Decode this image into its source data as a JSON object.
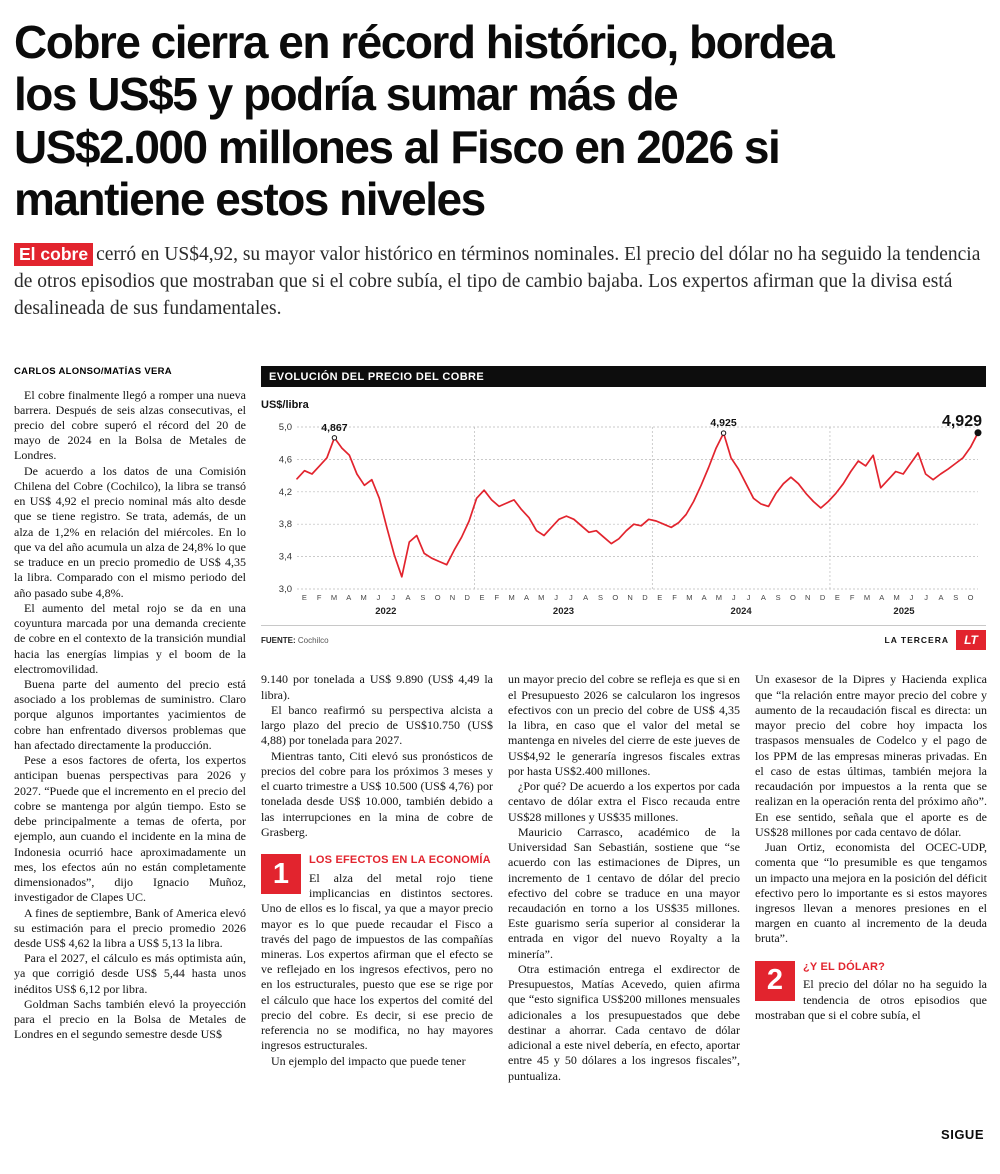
{
  "accent_color": "#e2242e",
  "header": {
    "headline_lines": [
      "Cobre cierra en récord histórico, bordea",
      "los US$5 y podría sumar más de",
      "US$2.000 millones al Fisco en 2026 si",
      "mantiene estos niveles"
    ]
  },
  "lead": {
    "tag": "El cobre",
    "text": "cerró en US$4,92, su mayor valor histórico en términos nominales. El precio del dólar no ha seguido la tendencia de otros episodios que mostraban que si el cobre subía, el tipo de cambio bajaba. Los expertos afirman que la divisa está desalineada de sus fundamentales."
  },
  "byline": "CARLOS ALONSO/MATÍAS VERA",
  "columns": {
    "col1": [
      "El cobre finalmente llegó a romper una nueva barrera. Después de seis alzas consecutivas, el precio del cobre superó el récord del 20 de mayo de 2024 en la Bolsa de Metales de Londres.",
      "De acuerdo a los datos de una Comisión Chilena del Cobre (Cochilco), la libra se transó en US$ 4,92 el precio nominal más alto desde que se tiene registro. Se trata, además, de un alza de 1,2% en relación del miércoles. En lo que va del año acumula un alza de 24,8% lo que se traduce en un precio promedio de US$ 4,35 la libra. Comparado con el mismo periodo del año pasado sube 4,8%.",
      "El aumento del metal rojo se da en una coyuntura marcada por una demanda creciente de cobre en el contexto de la transición mundial hacia las energías limpias y el boom de la electromovilidad.",
      "Buena parte del aumento del precio está asociado a los problemas de suministro. Claro porque algunos importantes yacimientos de cobre han enfrentado diversos problemas que han afectado directamente la producción.",
      "Pese a esos factores de oferta, los expertos anticipan buenas perspectivas para 2026 y 2027. “Puede que el incremento en el precio del cobre se mantenga por algún tiempo. Esto se debe principalmente a temas de oferta, por ejemplo, aun cuando el incidente en la mina de Indonesia ocurrió hace aproximadamente un mes, los efectos aún no están completamente dimensionados”, dijo Ignacio Muñoz, investigador de Clapes UC.",
      "A fines de septiembre, Bank of America elevó su estimación para el precio promedio 2026 desde US$ 4,62 la libra a US$ 5,13 la libra.",
      "Para el 2027, el cálculo es más optimista aún, ya que corrigió desde US$ 5,44 hasta unos inéditos US$ 6,12 por libra.",
      "Goldman Sachs también elevó la proyección para el precio en la Bolsa de Metales de Londres en el segundo semestre desde US$"
    ],
    "col2": [
      "9.140 por tonelada a US$ 9.890 (US$ 4,49 la libra).",
      "El banco reafirmó su perspectiva alcista a largo plazo del precio de US$10.750 (US$ 4,88) por tonelada para 2027.",
      "Mientras tanto, Citi elevó sus pronósticos de precios del cobre para los próximos 3 meses y el cuarto trimestre a US$ 10.500 (US$ 4,76) por tonelada desde US$ 10.000, también debido a las interrupciones en la mina de cobre de Grasberg."
    ],
    "col3": [
      "un mayor precio del cobre se refleja es que si en el Presupuesto 2026 se calcularon los ingresos efectivos con un precio del cobre de US$ 4,35 la libra, en caso que el valor del metal se mantenga en niveles del cierre de este jueves de US$4,92 le generaría ingresos fiscales extras por hasta US$2.400 millones.",
      "¿Por qué? De acuerdo a los expertos por cada centavo de dólar extra el Fisco recauda entre US$28 millones y US$35 millones.",
      "Mauricio Carrasco, académico de la Universidad San Sebastián, sostiene que “se acuerdo con las estimaciones de Dipres, un incremento de 1 centavo de dólar del precio efectivo del cobre se traduce en una mayor recaudación en torno a los US$35 millones. Este guarismo sería superior al considerar la entrada en vigor del nuevo Royalty a la minería”.",
      "Otra estimación entrega el exdirector de Presupuestos, Matías Acevedo, quien afirma que “esto significa US$200 millones mensuales adicionales a los presupuestados que debe destinar a ahorrar. Cada centavo de dólar adicional a este nivel debería, en efecto, aportar entre 45 y 50 dólares a los ingresos fiscales”, puntualiza."
    ],
    "col4": [
      "Un exasesor de la Dipres y Hacienda explica que “la relación entre mayor precio del cobre y aumento de la recaudación fiscal es directa: un mayor precio del cobre hoy impacta los traspasos mensuales de Codelco y el pago de los PPM de las empresas mineras privadas. En el caso de estas últimas, también mejora la recaudación por impuestos a la renta que se realizan en la operación renta del próximo año”. En ese sentido, señala que el aporte es de US$28 millones por cada centavo de dólar.",
      "Juan Ortiz, economista del OCEC-UDP, comenta que “lo presumible es que tengamos un impacto una mejora en la posición del déficit efectivo pero lo importante es si estos mayores ingresos llevan a menores presiones en el margen en cuanto al incremento de la deuda bruta”."
    ]
  },
  "sections": {
    "s1": {
      "number": "1",
      "title": "LOS EFECTOS EN LA ECONOMÍA",
      "paragraphs": [
        "El alza del metal rojo tiene implicancias en distintos sectores. Uno de ellos es lo fiscal, ya que a mayor precio mayor es lo que puede recaudar el Fisco a través del pago de impuestos de las compañías mineras. Los expertos afirman que el efecto se ve reflejado en los ingresos efectivos, pero no en los estructurales, puesto que ese se rige por el cálculo que hace los expertos del comité del precio del cobre. Es decir, si ese precio de referencia no se modifica, no hay mayores ingresos estructurales.",
        "Un ejemplo del impacto que puede tener"
      ]
    },
    "s2": {
      "number": "2",
      "title": "¿Y EL DÓLAR?",
      "paragraphs": [
        "El precio del dólar no ha seguido la tendencia de otros episodios que mostraban que si el cobre subía, el"
      ]
    }
  },
  "footer": {
    "continue_label": "SIGUE"
  },
  "chart_data": {
    "type": "line",
    "title": "EVOLUCIÓN DEL PRECIO DEL COBRE",
    "unit_label": "US$/libra",
    "source_label": "FUENTE:",
    "source_value": "Cochilco",
    "credit": "LA TERCERA",
    "logo": "LT",
    "line_color": "#e2242e",
    "ylim": [
      3.0,
      5.0
    ],
    "yticks": [
      3.0,
      3.4,
      3.8,
      4.2,
      4.6,
      5.0
    ],
    "ytick_labels": [
      "3,0",
      "3,4",
      "3,8",
      "4,2",
      "4,6",
      "5,0"
    ],
    "month_letters": [
      "E",
      "F",
      "M",
      "A",
      "M",
      "J",
      "J",
      "A",
      "S",
      "O",
      "N",
      "D"
    ],
    "years": [
      {
        "label": "2022",
        "months": 12
      },
      {
        "label": "2023",
        "months": 12
      },
      {
        "label": "2024",
        "months": 12
      },
      {
        "label": "2025",
        "months": 10
      }
    ],
    "values": [
      4.36,
      4.46,
      4.42,
      4.52,
      4.62,
      4.867,
      4.74,
      4.65,
      4.42,
      4.28,
      4.35,
      4.12,
      3.76,
      3.42,
      3.15,
      3.58,
      3.66,
      3.44,
      3.38,
      3.34,
      3.3,
      3.48,
      3.64,
      3.84,
      4.12,
      4.22,
      4.1,
      4.02,
      4.06,
      4.1,
      3.98,
      3.88,
      3.72,
      3.66,
      3.76,
      3.86,
      3.9,
      3.86,
      3.78,
      3.7,
      3.72,
      3.64,
      3.56,
      3.62,
      3.72,
      3.8,
      3.78,
      3.86,
      3.84,
      3.8,
      3.76,
      3.82,
      3.92,
      4.08,
      4.28,
      4.5,
      4.74,
      4.925,
      4.62,
      4.48,
      4.3,
      4.12,
      4.05,
      4.02,
      4.18,
      4.3,
      4.38,
      4.3,
      4.18,
      4.08,
      4.0,
      4.08,
      4.18,
      4.3,
      4.45,
      4.58,
      4.52,
      4.65,
      4.25,
      4.35,
      4.45,
      4.42,
      4.55,
      4.68,
      4.42,
      4.35,
      4.42,
      4.48,
      4.55,
      4.62,
      4.75,
      4.929
    ],
    "annotations": [
      {
        "index": 5,
        "label": "4,867",
        "bold": false
      },
      {
        "index": 57,
        "label": "4,925",
        "bold": false
      },
      {
        "index": 91,
        "label": "4,929",
        "bold": true
      }
    ]
  }
}
